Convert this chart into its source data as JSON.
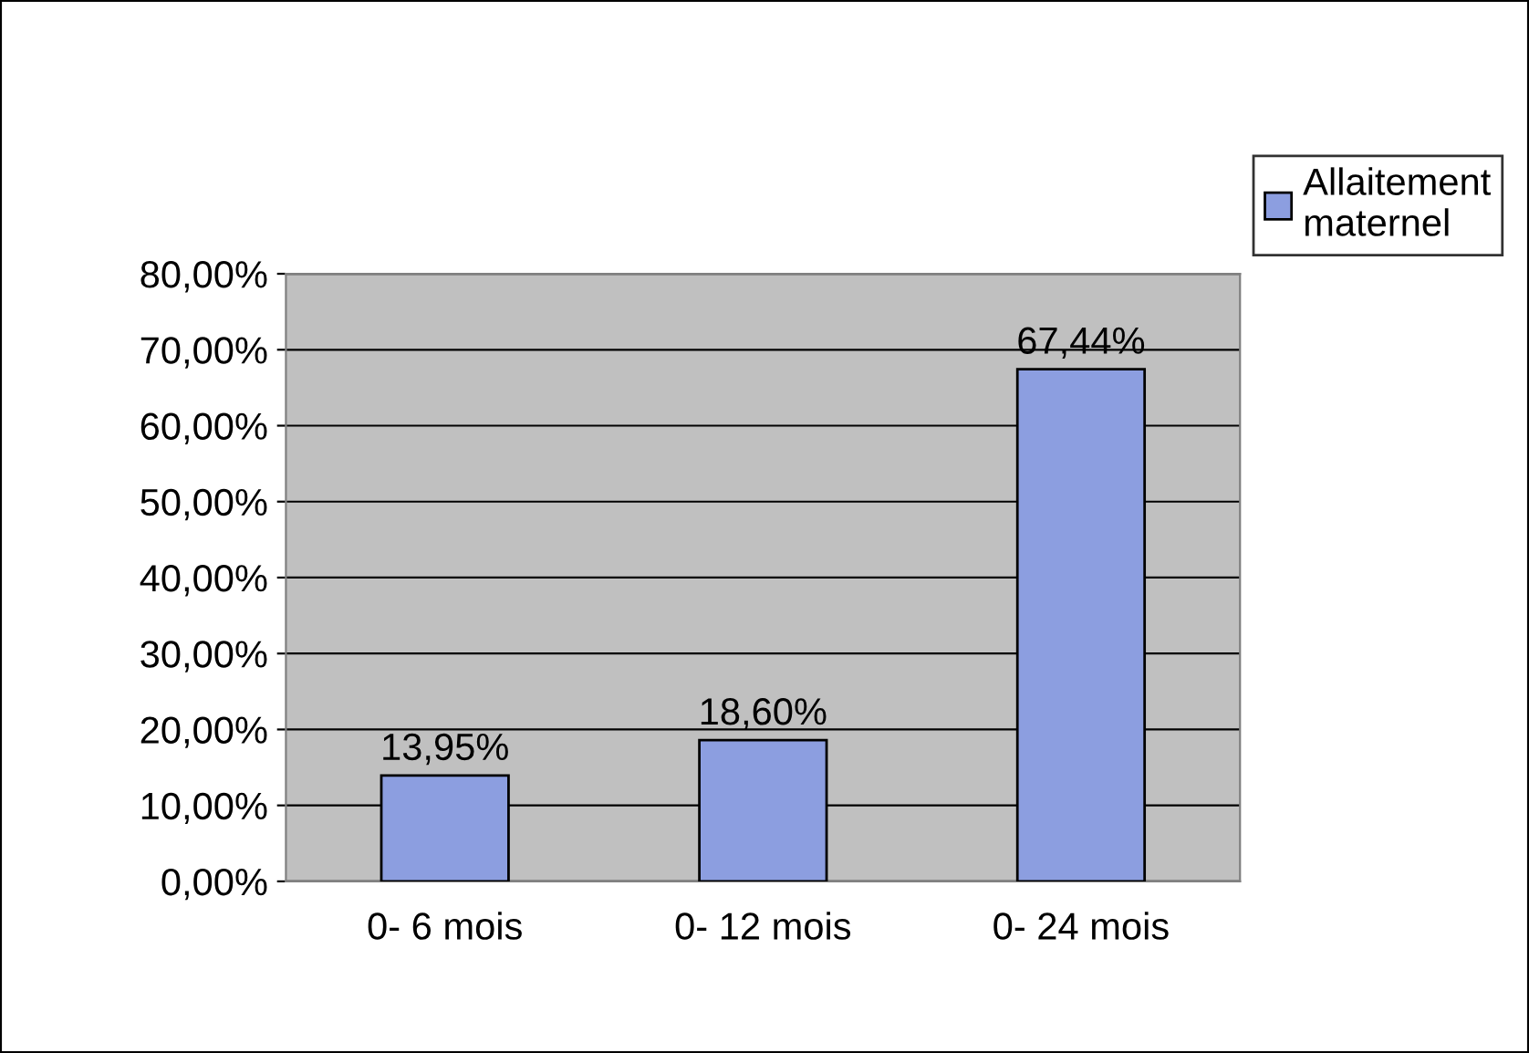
{
  "chart_data": {
    "type": "bar",
    "categories": [
      "0- 6 mois",
      "0- 12 mois",
      "0- 24 mois"
    ],
    "series": [
      {
        "name": "Allaitement maternel",
        "color": "#8c9ee0",
        "values": [
          13.95,
          18.6,
          67.44
        ],
        "value_labels": [
          "13,95%",
          "18,60%",
          "67,44%"
        ]
      }
    ],
    "ylim": [
      0,
      80
    ],
    "yticks": [
      {
        "value": 0,
        "label": "0,00%"
      },
      {
        "value": 10,
        "label": "10,00%"
      },
      {
        "value": 20,
        "label": "20,00%"
      },
      {
        "value": 30,
        "label": "30,00%"
      },
      {
        "value": 40,
        "label": "40,00%"
      },
      {
        "value": 50,
        "label": "50,00%"
      },
      {
        "value": 60,
        "label": "60,00%"
      },
      {
        "value": 70,
        "label": "70,00%"
      },
      {
        "value": 80,
        "label": "80,00%"
      }
    ],
    "grid": "y",
    "legend": "top right"
  }
}
